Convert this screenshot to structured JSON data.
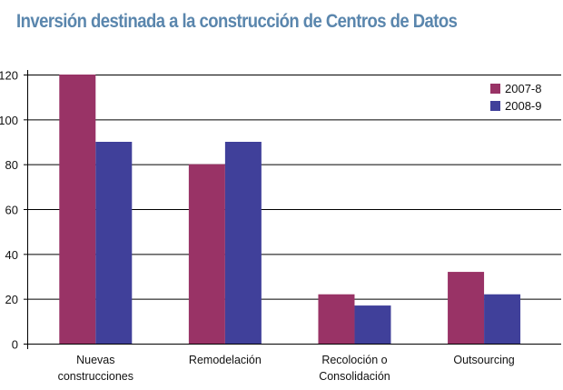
{
  "chart_data": {
    "type": "bar",
    "title": "Inversión destinada a la construcción de Centros de Datos",
    "categories": [
      [
        "Nuevas",
        "construcciones"
      ],
      [
        "Remodelación"
      ],
      [
        "Recoloción o",
        "Consolidación"
      ],
      [
        "Outsourcing"
      ]
    ],
    "series": [
      {
        "name": "2007-8",
        "values": [
          120,
          80,
          22,
          32
        ],
        "color": "#993366"
      },
      {
        "name": "2008-9",
        "values": [
          90,
          90,
          17,
          22
        ],
        "color": "#40409a"
      }
    ],
    "yticks": [
      "0",
      "20",
      "40",
      "60",
      "80",
      "100",
      "120"
    ],
    "ylim": [
      0,
      120
    ],
    "grid": true,
    "legend": "top-right",
    "xlabel": "",
    "ylabel": ""
  }
}
